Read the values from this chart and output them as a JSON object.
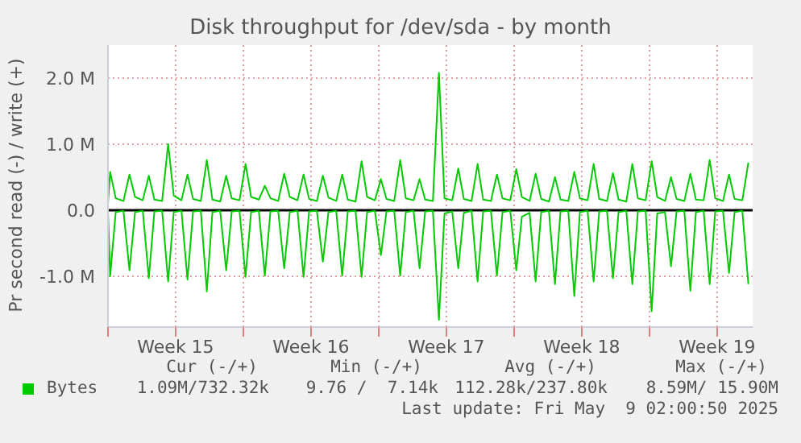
{
  "chart_data": {
    "type": "line",
    "title": "Disk throughput for /dev/sda - by month",
    "ylabel": "Pr second read (-) / write (+)",
    "x": [
      "2025-04-07T00:00",
      "2025-04-07T02:40",
      "2025-04-07T09:36",
      "2025-04-07T19:12",
      "2025-04-08T02:40",
      "2025-04-08T09:36",
      "2025-04-08T19:12",
      "2025-04-09T02:40",
      "2025-04-09T09:36",
      "2025-04-09T19:12",
      "2025-04-10T02:40",
      "2025-04-10T09:36",
      "2025-04-10T19:12",
      "2025-04-11T02:40",
      "2025-04-11T09:36",
      "2025-04-11T19:12",
      "2025-04-12T02:40",
      "2025-04-12T09:36",
      "2025-04-12T19:12",
      "2025-04-13T02:40",
      "2025-04-13T09:36",
      "2025-04-13T19:12",
      "2025-04-14T02:40",
      "2025-04-14T09:36",
      "2025-04-14T19:12",
      "2025-04-15T02:40",
      "2025-04-15T09:36",
      "2025-04-15T19:12",
      "2025-04-16T02:40",
      "2025-04-16T09:36",
      "2025-04-16T19:12",
      "2025-04-17T02:40",
      "2025-04-17T09:36",
      "2025-04-17T19:12",
      "2025-04-18T02:40",
      "2025-04-18T09:36",
      "2025-04-18T19:12",
      "2025-04-19T02:40",
      "2025-04-19T09:36",
      "2025-04-19T19:12",
      "2025-04-20T02:40",
      "2025-04-20T09:36",
      "2025-04-20T19:12",
      "2025-04-21T02:40",
      "2025-04-21T09:36",
      "2025-04-21T19:12",
      "2025-04-22T02:40",
      "2025-04-22T09:36",
      "2025-04-22T19:12",
      "2025-04-23T02:40",
      "2025-04-23T09:36",
      "2025-04-23T19:12",
      "2025-04-24T02:40",
      "2025-04-24T09:36",
      "2025-04-24T19:12",
      "2025-04-25T02:40",
      "2025-04-25T09:36",
      "2025-04-25T19:12",
      "2025-04-26T02:40",
      "2025-04-26T09:36",
      "2025-04-26T19:12",
      "2025-04-27T02:40",
      "2025-04-27T09:36",
      "2025-04-27T19:12",
      "2025-04-28T02:40",
      "2025-04-28T09:36",
      "2025-04-28T19:12",
      "2025-04-29T02:40",
      "2025-04-29T09:36",
      "2025-04-29T19:12",
      "2025-04-30T02:40",
      "2025-04-30T09:36",
      "2025-04-30T19:12",
      "2025-05-01T02:40",
      "2025-05-01T09:36",
      "2025-05-01T19:12",
      "2025-05-02T02:40",
      "2025-05-02T09:36",
      "2025-05-02T19:12",
      "2025-05-03T02:40",
      "2025-05-03T09:36",
      "2025-05-03T19:12",
      "2025-05-04T02:40",
      "2025-05-04T09:36",
      "2025-05-04T19:12",
      "2025-05-05T02:40",
      "2025-05-05T09:36",
      "2025-05-05T19:12",
      "2025-05-06T02:40",
      "2025-05-06T09:36",
      "2025-05-06T19:12",
      "2025-05-07T02:40",
      "2025-05-07T09:36",
      "2025-05-07T19:12",
      "2025-05-08T02:40",
      "2025-05-08T09:36",
      "2025-05-08T19:12",
      "2025-05-09T02:40",
      "2025-05-09T09:36",
      "2025-05-09T19:12",
      "2025-05-10T02:40"
    ],
    "series": [
      {
        "name": "Bytes",
        "color": "#00cc00",
        "values": [
          0.1,
          0.58,
          0.18,
          0.14,
          0.54,
          0.2,
          0.15,
          0.52,
          0.16,
          0.14,
          1.0,
          0.22,
          0.15,
          0.54,
          0.17,
          0.14,
          0.76,
          0.16,
          0.13,
          0.52,
          0.18,
          0.15,
          0.7,
          0.2,
          0.16,
          0.37,
          0.18,
          0.14,
          0.55,
          0.2,
          0.15,
          0.54,
          0.17,
          0.14,
          0.52,
          0.19,
          0.14,
          0.54,
          0.16,
          0.13,
          0.74,
          0.2,
          0.15,
          0.47,
          0.17,
          0.14,
          0.76,
          0.18,
          0.15,
          0.47,
          0.16,
          0.14,
          2.08,
          0.18,
          0.15,
          0.63,
          0.17,
          0.14,
          0.7,
          0.16,
          0.14,
          0.54,
          0.18,
          0.15,
          0.62,
          0.2,
          0.14,
          0.55,
          0.17,
          0.13,
          0.5,
          0.16,
          0.14,
          0.58,
          0.18,
          0.15,
          0.7,
          0.17,
          0.14,
          0.56,
          0.16,
          0.13,
          0.7,
          0.18,
          0.15,
          0.74,
          0.2,
          0.14,
          0.5,
          0.17,
          0.14,
          0.55,
          0.16,
          0.15,
          0.76,
          0.18,
          0.14,
          0.54,
          0.17,
          0.15,
          0.72
        ]
      },
      {
        "color": "#00cc00",
        "values": [
          -0.02,
          -1.0,
          -0.03,
          -0.01,
          -0.91,
          -0.03,
          -0.01,
          -1.03,
          -0.02,
          -0.01,
          -1.08,
          -0.03,
          -0.01,
          -1.05,
          -0.02,
          -0.01,
          -1.23,
          -0.03,
          -0.01,
          -0.91,
          -0.02,
          -0.01,
          -1.01,
          -0.03,
          -0.01,
          -0.99,
          -0.02,
          -0.01,
          -0.88,
          -0.03,
          -0.01,
          -1.01,
          -0.02,
          -0.01,
          -0.78,
          -0.03,
          -0.01,
          -0.99,
          -0.02,
          -0.01,
          -1.01,
          -0.03,
          -0.01,
          -0.68,
          -0.02,
          -0.01,
          -0.99,
          -0.03,
          -0.01,
          -0.88,
          -0.02,
          -0.01,
          -1.66,
          -0.05,
          -0.02,
          -0.88,
          -0.04,
          -0.01,
          -1.08,
          -0.02,
          -0.01,
          -0.99,
          -0.03,
          -0.01,
          -0.91,
          -0.1,
          -0.04,
          -1.08,
          -0.03,
          -0.01,
          -1.12,
          -0.02,
          -0.01,
          -1.3,
          -0.03,
          -0.01,
          -1.08,
          -0.02,
          -0.01,
          -1.03,
          -0.03,
          -0.01,
          -1.12,
          -0.02,
          -0.01,
          -1.53,
          -0.05,
          -0.03,
          -0.85,
          -0.02,
          -0.01,
          -1.22,
          -0.03,
          -0.01,
          -1.12,
          -0.02,
          -0.01,
          -0.95,
          -0.03,
          -0.01,
          -1.12
        ]
      }
    ],
    "xlim": [
      "2025-04-07",
      "2025-05-10T08:00"
    ],
    "xticks": [
      {
        "value": "2025-04-07",
        "label": null
      },
      {
        "value": "2025-04-10T12:00",
        "label": "Week 15"
      },
      {
        "value": "2025-04-14",
        "label": null
      },
      {
        "value": "2025-04-17T12:00",
        "label": "Week 16"
      },
      {
        "value": "2025-04-21",
        "label": null
      },
      {
        "value": "2025-04-24T12:00",
        "label": "Week 17"
      },
      {
        "value": "2025-04-28",
        "label": null
      },
      {
        "value": "2025-05-01T12:00",
        "label": "Week 18"
      },
      {
        "value": "2025-05-05",
        "label": null
      },
      {
        "value": "2025-05-08T12:00",
        "label": "Week 19"
      }
    ],
    "ylim": [
      -1.77,
      2.5
    ],
    "yticks": [
      {
        "value": -1,
        "label": "-1.0 M"
      },
      {
        "value": 0,
        "label": "0.0"
      },
      {
        "value": 1,
        "label": "1.0 M"
      },
      {
        "value": 2,
        "label": "2.0 M"
      }
    ],
    "ref_lines": [
      {
        "axis": "y",
        "value": 0,
        "color": "#000000"
      }
    ],
    "grid": true,
    "legend": "bottom left",
    "marker": "none",
    "line_style": "solid",
    "annotations": [
      "Cur (-/+)",
      "Min (-/+)",
      "Avg (-/+)",
      "Max (-/+)",
      "1.09M/732.32k",
      "9.76 /  7.14k",
      "112.28k/237.80k",
      "8.59M/ 15.90M",
      "Last update: Fri May  9 02:00:50 2025"
    ]
  }
}
